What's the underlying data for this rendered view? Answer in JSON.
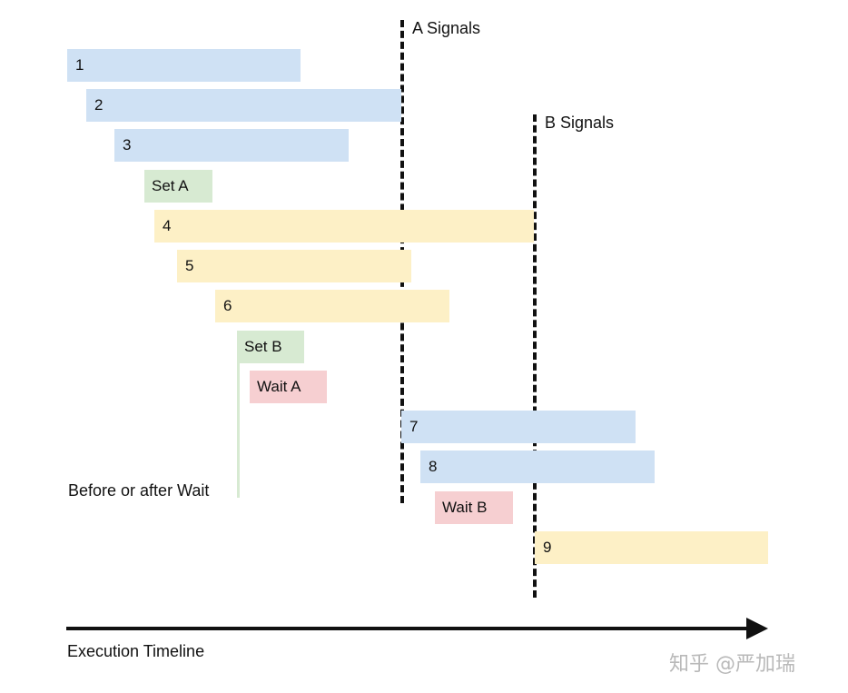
{
  "signals": {
    "a_label": "A Signals",
    "b_label": "B Signals"
  },
  "tasks": {
    "t1": "1",
    "t2": "2",
    "t3": "3",
    "set_a": "Set A",
    "t4": "4",
    "t5": "5",
    "t6": "6",
    "set_b": "Set B",
    "wait_a": "Wait A",
    "t7": "7",
    "t8": "8",
    "wait_b": "Wait B",
    "t9": "9"
  },
  "annotation": "Before or after Wait",
  "axis_label": "Execution Timeline",
  "watermark": "知乎 @严加瑞",
  "colors": {
    "blue": "#cfe1f4",
    "yellow": "#fdf0c6",
    "green": "#d7ead2",
    "red": "#f6cfd1"
  }
}
